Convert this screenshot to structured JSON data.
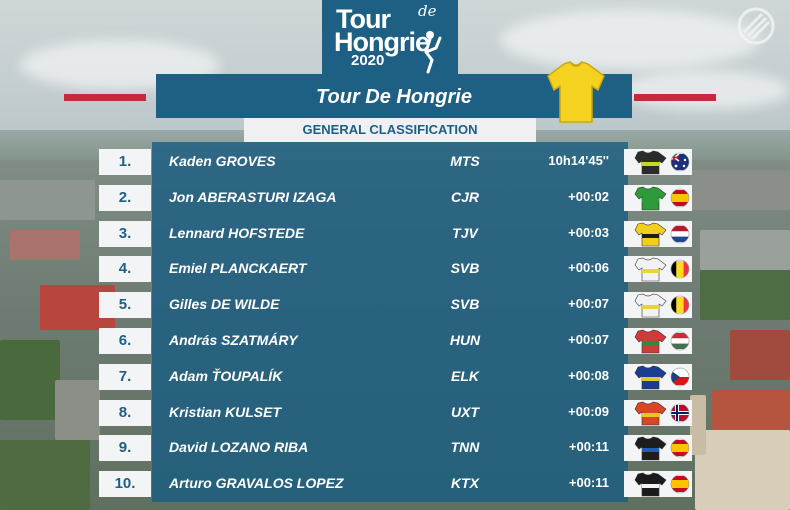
{
  "logo": {
    "line1": "Tour",
    "line1_small": "de",
    "line2": "Hongrie",
    "line3": "2020"
  },
  "header": {
    "title": "Tour De Hongrie",
    "subtitle": "GENERAL CLASSIFICATION",
    "leader_jersey_color": "#f4d21f"
  },
  "colors": {
    "panel": "#1e5f84",
    "accent_red": "#c8283b"
  },
  "standings": [
    {
      "rank": "1.",
      "name": "Kaden GROVES",
      "team": "MTS",
      "time": "10h14'45''",
      "jersey": "jersey-mts-icon",
      "flag": "australia-flag-icon"
    },
    {
      "rank": "2.",
      "name": "Jon ABERASTURI IZAGA",
      "team": "CJR",
      "time": "+00:02",
      "jersey": "jersey-cjr-icon",
      "flag": "spain-flag-icon"
    },
    {
      "rank": "3.",
      "name": "Lennard HOFSTEDE",
      "team": "TJV",
      "time": "+00:03",
      "jersey": "jersey-tjv-icon",
      "flag": "netherlands-flag-icon"
    },
    {
      "rank": "4.",
      "name": "Emiel PLANCKAERT",
      "team": "SVB",
      "time": "+00:06",
      "jersey": "jersey-svb-icon",
      "flag": "belgium-flag-icon"
    },
    {
      "rank": "5.",
      "name": "Gilles DE WILDE",
      "team": "SVB",
      "time": "+00:07",
      "jersey": "jersey-svb-icon",
      "flag": "belgium-flag-icon"
    },
    {
      "rank": "6.",
      "name": "András SZATMÁRY",
      "team": "HUN",
      "time": "+00:07",
      "jersey": "jersey-hun-icon",
      "flag": "hungary-flag-icon"
    },
    {
      "rank": "7.",
      "name": "Adam ŤOUPALÍK",
      "team": "ELK",
      "time": "+00:08",
      "jersey": "jersey-elk-icon",
      "flag": "czechia-flag-icon"
    },
    {
      "rank": "8.",
      "name": "Kristian KULSET",
      "team": "UXT",
      "time": "+00:09",
      "jersey": "jersey-uxt-icon",
      "flag": "norway-flag-icon"
    },
    {
      "rank": "9.",
      "name": "David LOZANO RIBA",
      "team": "TNN",
      "time": "+00:11",
      "jersey": "jersey-tnn-icon",
      "flag": "spain-flag-icon"
    },
    {
      "rank": "10.",
      "name": "Arturo GRAVALOS LOPEZ",
      "team": "KTX",
      "time": "+00:11",
      "jersey": "jersey-ktx-icon",
      "flag": "spain-flag-icon"
    }
  ]
}
